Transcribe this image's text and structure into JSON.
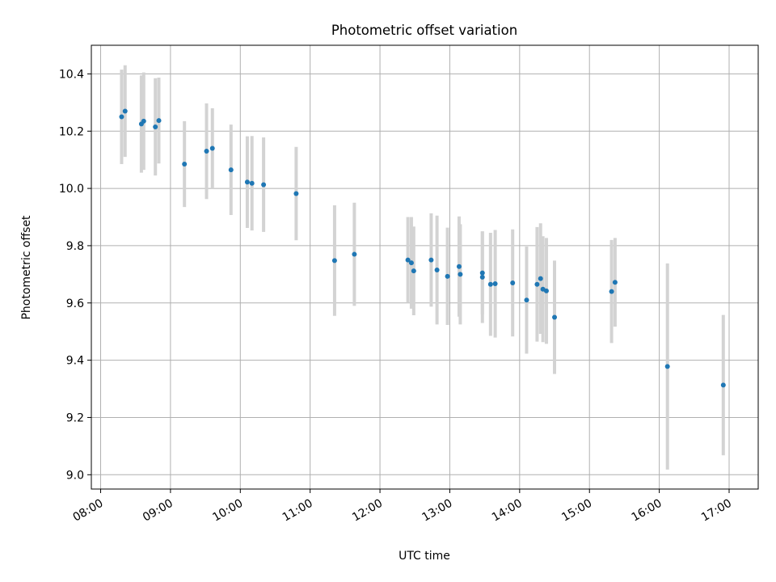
{
  "chart_data": {
    "type": "scatter",
    "title": "Photometric offset variation",
    "xlabel": "UTC time",
    "ylabel": "Photometric offset",
    "x_unit": "UTC time (HH:MM)",
    "xlim": [
      "07:52",
      "17:25"
    ],
    "ylim": [
      8.95,
      10.5
    ],
    "xticks": [
      "08:00",
      "09:00",
      "10:00",
      "11:00",
      "12:00",
      "13:00",
      "14:00",
      "15:00",
      "16:00",
      "17:00"
    ],
    "yticks": [
      "9.0",
      "9.2",
      "9.4",
      "9.6",
      "9.8",
      "10.0",
      "10.2",
      "10.4"
    ],
    "grid": true,
    "point_color": "#1f77b4",
    "errorbar_color": "#d3d3d3",
    "series": [
      {
        "points": [
          {
            "x": "08:18",
            "y": 10.25,
            "err": 0.165
          },
          {
            "x": "08:21",
            "y": 10.27,
            "err": 0.16
          },
          {
            "x": "08:35",
            "y": 10.225,
            "err": 0.17
          },
          {
            "x": "08:37",
            "y": 10.235,
            "err": 0.17
          },
          {
            "x": "08:47",
            "y": 10.215,
            "err": 0.17
          },
          {
            "x": "08:50",
            "y": 10.237,
            "err": 0.15
          },
          {
            "x": "09:12",
            "y": 10.085,
            "err": 0.15
          },
          {
            "x": "09:31",
            "y": 10.13,
            "err": 0.167
          },
          {
            "x": "09:36",
            "y": 10.14,
            "err": 0.14
          },
          {
            "x": "09:52",
            "y": 10.065,
            "err": 0.158
          },
          {
            "x": "10:06",
            "y": 10.022,
            "err": 0.16
          },
          {
            "x": "10:10",
            "y": 10.018,
            "err": 0.165
          },
          {
            "x": "10:20",
            "y": 10.013,
            "err": 0.165
          },
          {
            "x": "10:48",
            "y": 9.982,
            "err": 0.163
          },
          {
            "x": "11:21",
            "y": 9.748,
            "err": 0.193
          },
          {
            "x": "11:38",
            "y": 9.77,
            "err": 0.18
          },
          {
            "x": "12:24",
            "y": 9.75,
            "err": 0.15
          },
          {
            "x": "12:27",
            "y": 9.74,
            "err": 0.16
          },
          {
            "x": "12:29",
            "y": 9.712,
            "err": 0.155
          },
          {
            "x": "12:44",
            "y": 9.75,
            "err": 0.163
          },
          {
            "x": "12:49",
            "y": 9.715,
            "err": 0.19
          },
          {
            "x": "12:58",
            "y": 9.693,
            "err": 0.17
          },
          {
            "x": "13:08",
            "y": 9.727,
            "err": 0.175
          },
          {
            "x": "13:09",
            "y": 9.7,
            "err": 0.175
          },
          {
            "x": "13:28",
            "y": 9.705,
            "err": 0.145
          },
          {
            "x": "13:28",
            "y": 9.69,
            "err": 0.16
          },
          {
            "x": "13:35",
            "y": 9.665,
            "err": 0.18
          },
          {
            "x": "13:39",
            "y": 9.667,
            "err": 0.188
          },
          {
            "x": "13:54",
            "y": 9.67,
            "err": 0.187
          },
          {
            "x": "14:06",
            "y": 9.61,
            "err": 0.187
          },
          {
            "x": "14:15",
            "y": 9.665,
            "err": 0.2
          },
          {
            "x": "14:18",
            "y": 9.685,
            "err": 0.193
          },
          {
            "x": "14:20",
            "y": 9.648,
            "err": 0.185
          },
          {
            "x": "14:23",
            "y": 9.642,
            "err": 0.185
          },
          {
            "x": "14:30",
            "y": 9.55,
            "err": 0.198
          },
          {
            "x": "15:19",
            "y": 9.64,
            "err": 0.18
          },
          {
            "x": "15:22",
            "y": 9.672,
            "err": 0.155
          },
          {
            "x": "16:07",
            "y": 9.378,
            "err": 0.36
          },
          {
            "x": "16:55",
            "y": 9.313,
            "err": 0.245
          }
        ]
      }
    ]
  }
}
